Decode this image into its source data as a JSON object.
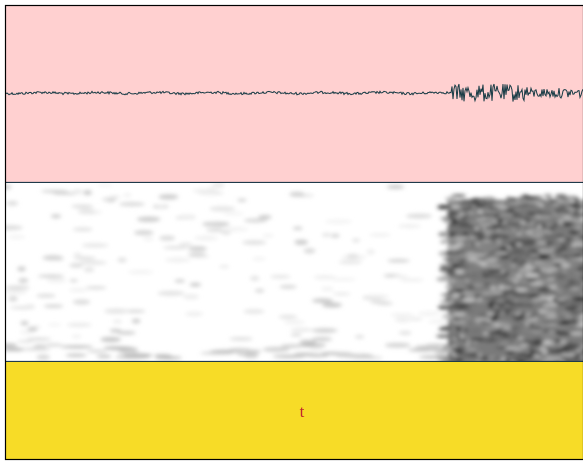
{
  "tier": {
    "label": "t"
  }
}
